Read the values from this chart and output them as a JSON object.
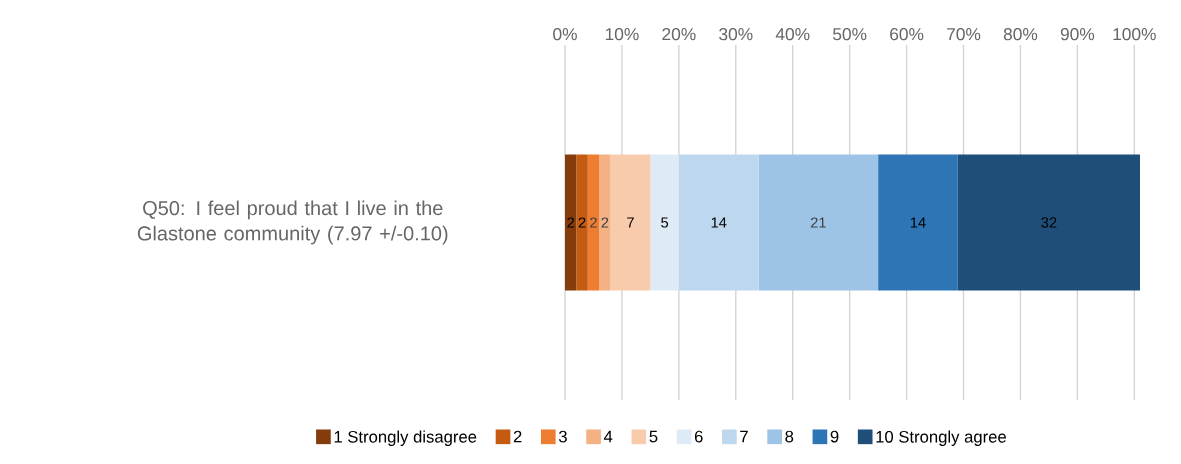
{
  "chart_data": {
    "type": "bar",
    "orientation": "horizontal",
    "stacked": true,
    "data_labels": true,
    "grid": "x",
    "legend": "bottom",
    "categories": [
      "Q50: I feel proud that I live in the Glastone community (7.97 +/-0.10)"
    ],
    "xlim": [
      0,
      101
    ],
    "xticks": [
      {
        "value": 0,
        "label": "0%"
      },
      {
        "value": 10,
        "label": "10%"
      },
      {
        "value": 20,
        "label": "20%"
      },
      {
        "value": 30,
        "label": "30%"
      },
      {
        "value": 40,
        "label": "40%"
      },
      {
        "value": 50,
        "label": "50%"
      },
      {
        "value": 60,
        "label": "60%"
      },
      {
        "value": 70,
        "label": "70%"
      },
      {
        "value": 80,
        "label": "80%"
      },
      {
        "value": 90,
        "label": "90%"
      },
      {
        "value": 100,
        "label": "100%"
      }
    ],
    "series": [
      {
        "name": "1 Strongly disagree",
        "color": "#843c0c",
        "values": [
          2
        ]
      },
      {
        "name": "2",
        "color": "#c55a11",
        "values": [
          2
        ]
      },
      {
        "name": "3",
        "color": "#ed7d31",
        "values": [
          2
        ]
      },
      {
        "name": "4",
        "color": "#f4b183",
        "values": [
          2
        ]
      },
      {
        "name": "5",
        "color": "#f8cbad",
        "values": [
          7
        ]
      },
      {
        "name": "6",
        "color": "#deebf7",
        "values": [
          5
        ]
      },
      {
        "name": "7",
        "color": "#bdd7ee",
        "values": [
          14
        ]
      },
      {
        "name": "8",
        "color": "#9dc3e6",
        "values": [
          21
        ]
      },
      {
        "name": "9",
        "color": "#2e75b6",
        "values": [
          14
        ]
      },
      {
        "name": "10 Strongly agree",
        "color": "#1f4e79",
        "values": [
          32
        ]
      }
    ]
  }
}
